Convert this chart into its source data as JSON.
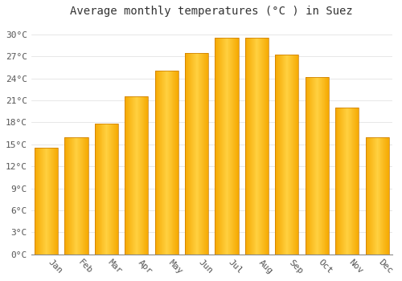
{
  "months": [
    "Jan",
    "Feb",
    "Mar",
    "Apr",
    "May",
    "Jun",
    "Jul",
    "Aug",
    "Sep",
    "Oct",
    "Nov",
    "Dec"
  ],
  "temperatures": [
    14.5,
    16.0,
    17.8,
    21.5,
    25.0,
    27.5,
    29.5,
    29.5,
    27.2,
    24.2,
    20.0,
    16.0
  ],
  "bar_color_center": "#FFD040",
  "bar_color_edge": "#F5A800",
  "title": "Average monthly temperatures (°C ) in Suez",
  "yticks": [
    0,
    3,
    6,
    9,
    12,
    15,
    18,
    21,
    24,
    27,
    30
  ],
  "ytick_labels": [
    "0°C",
    "3°C",
    "6°C",
    "9°C",
    "12°C",
    "15°C",
    "18°C",
    "21°C",
    "24°C",
    "27°C",
    "30°C"
  ],
  "ylim": [
    0,
    31.5
  ],
  "background_color": "#ffffff",
  "grid_color": "#dddddd",
  "title_fontsize": 10,
  "tick_fontsize": 8,
  "font_family": "monospace",
  "bar_width": 0.78,
  "xlabel_rotation": -45,
  "bar_edge_color": "#C87800",
  "bar_edge_linewidth": 0.5
}
